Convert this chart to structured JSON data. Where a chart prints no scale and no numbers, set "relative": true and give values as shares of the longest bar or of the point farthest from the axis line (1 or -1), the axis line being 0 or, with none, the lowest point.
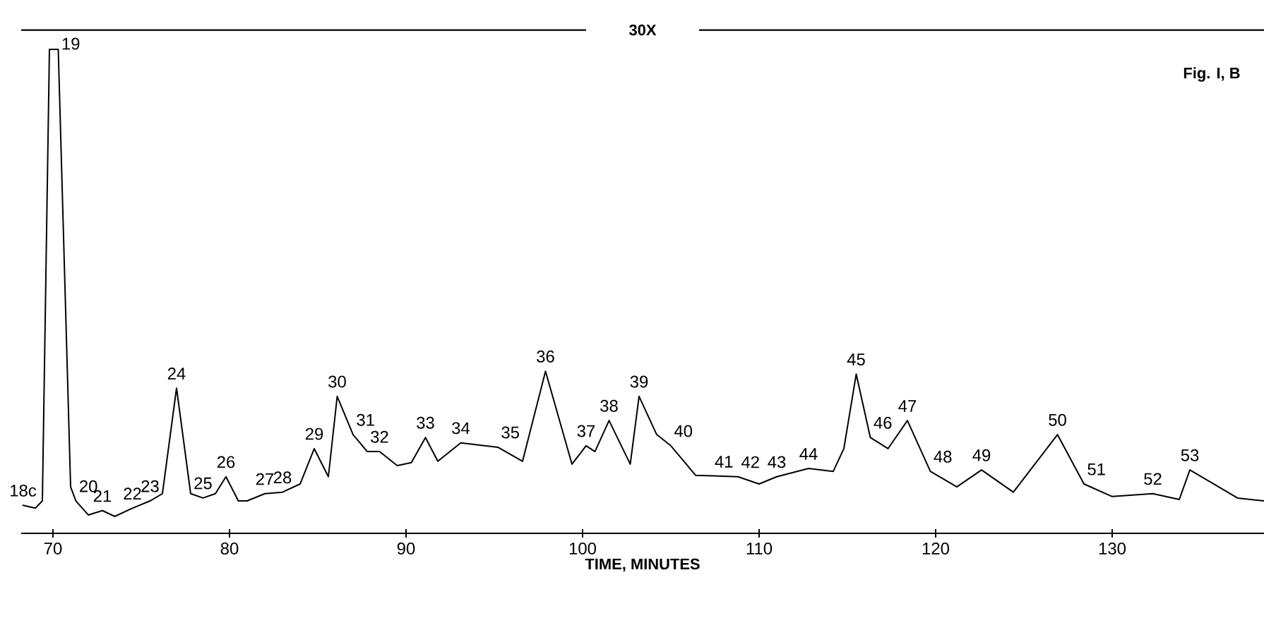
{
  "chart_data": {
    "type": "line",
    "relative": true,
    "xlabel": "TIME, MINUTES",
    "xlim": [
      68.2,
      138.6
    ],
    "xticks": [
      70,
      80,
      90,
      100,
      110,
      120,
      130
    ],
    "tick_labels": "x",
    "series": [
      {
        "color": "#000000",
        "x": [
          68.3,
          69.0,
          69.4,
          69.8,
          70.3,
          71.0,
          71.3,
          72.0,
          72.8,
          73.5,
          74.5,
          75.5,
          76.2,
          77.0,
          77.8,
          78.5,
          79.2,
          79.8,
          80.5,
          81.0,
          82.0,
          83.0,
          84.0,
          84.8,
          85.6,
          86.1,
          87.0,
          87.8,
          88.5,
          89.5,
          90.3,
          91.1,
          91.8,
          93.1,
          95.2,
          96.6,
          97.9,
          99.4,
          100.2,
          100.7,
          101.5,
          102.7,
          103.2,
          104.2,
          105.0,
          106.4,
          108.8,
          110.0,
          111.0,
          112.8,
          114.2,
          114.8,
          115.5,
          116.3,
          117.3,
          118.4,
          119.7,
          121.2,
          122.6,
          124.4,
          126.9,
          128.4,
          130.0,
          132.3,
          133.8,
          134.4,
          137.1,
          138.6
        ],
        "values": [
          0.058,
          0.052,
          0.067,
          1.0,
          1.0,
          0.096,
          0.067,
          0.038,
          0.047,
          0.035,
          0.052,
          0.067,
          0.082,
          0.3,
          0.082,
          0.073,
          0.082,
          0.117,
          0.067,
          0.067,
          0.082,
          0.085,
          0.102,
          0.175,
          0.117,
          0.283,
          0.204,
          0.169,
          0.169,
          0.14,
          0.146,
          0.198,
          0.149,
          0.187,
          0.178,
          0.149,
          0.335,
          0.143,
          0.181,
          0.169,
          0.233,
          0.143,
          0.283,
          0.204,
          0.181,
          0.12,
          0.117,
          0.102,
          0.117,
          0.134,
          0.128,
          0.175,
          0.329,
          0.198,
          0.175,
          0.233,
          0.128,
          0.096,
          0.131,
          0.085,
          0.204,
          0.102,
          0.076,
          0.082,
          0.07,
          0.131,
          0.073,
          0.067
        ]
      }
    ],
    "ref_lines": [
      {
        "axis": "y",
        "value": 1.04,
        "label": "30X"
      }
    ],
    "annotations": [
      "Fig. I, B",
      {
        "text": "18c",
        "x": 68.3,
        "y": 0.058
      },
      {
        "text": "19",
        "x": 70.3,
        "y": 1.0
      },
      {
        "text": "20",
        "x": 71.3,
        "y": 0.067
      },
      {
        "text": "21",
        "x": 72.8,
        "y": 0.047
      },
      {
        "text": "22",
        "x": 74.5,
        "y": 0.052
      },
      {
        "text": "23",
        "x": 75.5,
        "y": 0.067
      },
      {
        "text": "24",
        "x": 77.0,
        "y": 0.3
      },
      {
        "text": "25",
        "x": 78.5,
        "y": 0.073
      },
      {
        "text": "26",
        "x": 79.8,
        "y": 0.117
      },
      {
        "text": "27",
        "x": 82.0,
        "y": 0.082
      },
      {
        "text": "28",
        "x": 83.0,
        "y": 0.085
      },
      {
        "text": "29",
        "x": 84.8,
        "y": 0.175
      },
      {
        "text": "30",
        "x": 86.1,
        "y": 0.283
      },
      {
        "text": "31",
        "x": 87.0,
        "y": 0.204
      },
      {
        "text": "32",
        "x": 88.5,
        "y": 0.169
      },
      {
        "text": "33",
        "x": 91.1,
        "y": 0.198
      },
      {
        "text": "34",
        "x": 93.1,
        "y": 0.187
      },
      {
        "text": "35",
        "x": 95.2,
        "y": 0.178
      },
      {
        "text": "36",
        "x": 97.9,
        "y": 0.335
      },
      {
        "text": "37",
        "x": 100.2,
        "y": 0.181
      },
      {
        "text": "38",
        "x": 101.5,
        "y": 0.233
      },
      {
        "text": "39",
        "x": 103.2,
        "y": 0.283
      },
      {
        "text": "40",
        "x": 105.0,
        "y": 0.181
      },
      {
        "text": "41",
        "x": 107.3,
        "y": 0.118
      },
      {
        "text": "42",
        "x": 108.8,
        "y": 0.117
      },
      {
        "text": "43",
        "x": 111.0,
        "y": 0.117
      },
      {
        "text": "44",
        "x": 112.8,
        "y": 0.134
      },
      {
        "text": "45",
        "x": 115.5,
        "y": 0.329
      },
      {
        "text": "46",
        "x": 116.3,
        "y": 0.198
      },
      {
        "text": "47",
        "x": 118.4,
        "y": 0.233
      },
      {
        "text": "48",
        "x": 119.7,
        "y": 0.128
      },
      {
        "text": "49",
        "x": 122.6,
        "y": 0.131
      },
      {
        "text": "50",
        "x": 126.9,
        "y": 0.204
      },
      {
        "text": "51",
        "x": 128.4,
        "y": 0.102
      },
      {
        "text": "52",
        "x": 132.3,
        "y": 0.082
      },
      {
        "text": "53",
        "x": 134.4,
        "y": 0.131
      }
    ]
  }
}
